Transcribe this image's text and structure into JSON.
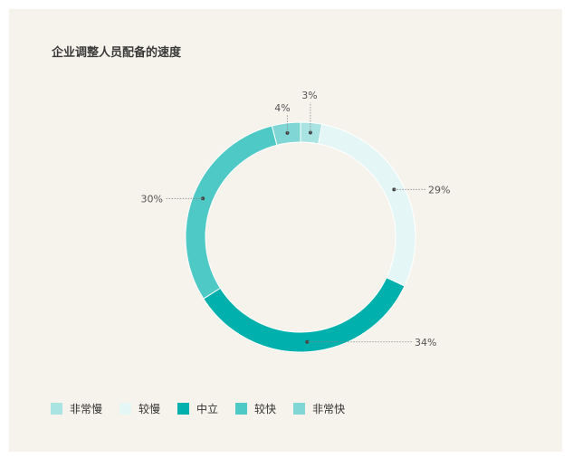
{
  "chart_data": {
    "type": "pie",
    "donut": true,
    "title": "企业调整人员配备的速度",
    "categories": [
      "非常慢",
      "较慢",
      "中立",
      "较快",
      "非常快"
    ],
    "values": [
      3,
      29,
      34,
      30,
      4
    ],
    "labels": [
      "3%",
      "29%",
      "34%",
      "30%",
      "4%"
    ],
    "colors": [
      "#a9e4e2",
      "#e4f6f5",
      "#00b0ad",
      "#4ec9c6",
      "#7fd6d4"
    ],
    "legend_position": "bottom-left"
  }
}
